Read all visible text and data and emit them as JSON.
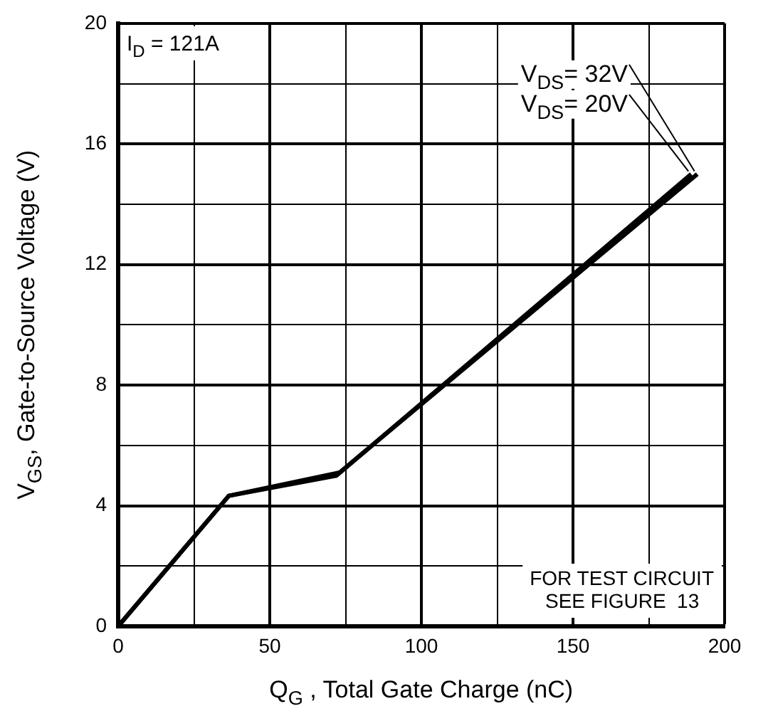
{
  "chart_data": {
    "type": "line",
    "xlabel": "Q$_{G}$ , Total Gate Charge (nC)",
    "ylabel": "V$_{GS}$, Gate-to-Source Voltage (V)",
    "xlim": [
      0,
      200
    ],
    "xticks": [
      0,
      {
        "value": 25,
        "label": null
      },
      50,
      {
        "value": 75,
        "label": null
      },
      100,
      {
        "value": 125,
        "label": null
      },
      150,
      {
        "value": 175,
        "label": null
      },
      200
    ],
    "ylim": [
      0,
      20
    ],
    "yticks": [
      0,
      {
        "value": 2,
        "label": null
      },
      4,
      {
        "value": 6,
        "label": null
      },
      8,
      {
        "value": 10,
        "label": null
      },
      12,
      {
        "value": 14,
        "label": null
      },
      16,
      {
        "value": 18,
        "label": null
      },
      20
    ],
    "grid": true,
    "legend": false,
    "marker": "none",
    "line_style": "solid",
    "series": [
      {
        "color": "#000000",
        "x": [
          0,
          36.5,
          73,
          191
        ],
        "values": [
          0,
          4.33,
          5.1,
          15
        ]
      },
      {
        "color": "#000000",
        "x": [
          0,
          36.5,
          72,
          189
        ],
        "values": [
          0,
          4.33,
          5.0,
          15
        ]
      }
    ],
    "annotations": [
      "I$_{D}$ = 121A",
      "FOR TEST CIRCUIT\nSEE FIGURE  13",
      {
        "text": "V$_{DS}$= 32V",
        "x": 191,
        "y": 15
      },
      {
        "text": "V$_{DS}$= 20V",
        "x": 189,
        "y": 15
      }
    ]
  }
}
